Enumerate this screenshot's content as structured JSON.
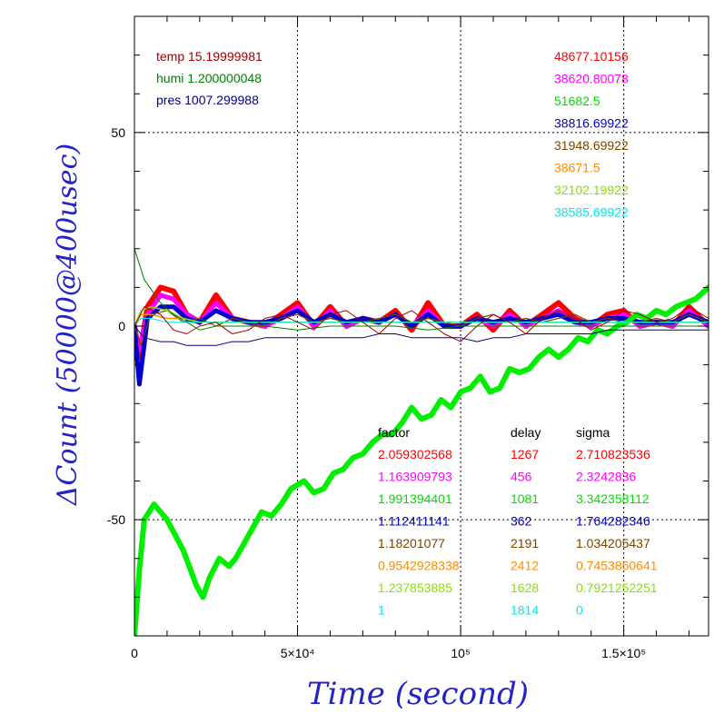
{
  "chart_data": {
    "type": "line",
    "xlabel": "Time (second)",
    "ylabel": "ΔCount (50000@400usec)",
    "xlim": [
      0,
      176000
    ],
    "ylim": [
      -80,
      80
    ],
    "x_ticks": [
      {
        "value": 0,
        "label": "0"
      },
      {
        "value": 50000,
        "label": "5×10⁴"
      },
      {
        "value": 100000,
        "label": "10⁵"
      },
      {
        "value": 150000,
        "label": "1.5×10⁵"
      }
    ],
    "y_ticks": [
      {
        "value": -50,
        "label": "-50"
      },
      {
        "value": 0,
        "label": "0"
      },
      {
        "value": 50,
        "label": "50"
      }
    ],
    "grid": true,
    "env": [
      {
        "text": "temp 15.19999981",
        "color": "#a00000"
      },
      {
        "text": "humi 1.200000048",
        "color": "#008000"
      },
      {
        "text": "pres 1007.299988",
        "color": "#000080"
      }
    ],
    "baselines": [
      "48677.10156",
      "38620.80078",
      "51682.5",
      "38816.69922",
      "31948.69922",
      "38671.5",
      "32102.19922",
      "38585.69922"
    ],
    "fit_headers": {
      "factor": "factor",
      "delay": "delay",
      "sigma": "sigma"
    },
    "fit_rows": [
      {
        "factor": "2.059302568",
        "delay": "1267",
        "sigma": "2.710823536"
      },
      {
        "factor": "1.163909793",
        "delay": "456",
        "sigma": "2.3242836"
      },
      {
        "factor": "1.991394401",
        "delay": "1081",
        "sigma": "3.342358112"
      },
      {
        "factor": "1.112411141",
        "delay": "362",
        "sigma": "1.764282346"
      },
      {
        "factor": "1.18201077",
        "delay": "2191",
        "sigma": "1.034205437"
      },
      {
        "factor": "0.9542928338",
        "delay": "2412",
        "sigma": "0.7453860641"
      },
      {
        "factor": "1.237853885",
        "delay": "1628",
        "sigma": "0.7921252251"
      },
      {
        "factor": "1",
        "delay": "1814",
        "sigma": "0"
      }
    ],
    "series_colors": [
      "#ff0000",
      "#ff00ff",
      "#00dd00",
      "#0000cc",
      "#7a4400",
      "#ff8c00",
      "#88e000",
      "#00e8e8"
    ],
    "series": [
      {
        "color": "#ff0000",
        "kind": "band",
        "x": [
          0,
          1500,
          4000,
          8000,
          12000,
          16000,
          20000,
          25000,
          30000,
          35000,
          40000,
          45000,
          50000,
          55000,
          60000,
          65000,
          70000,
          75000,
          80000,
          85000,
          90000,
          95000,
          100000,
          105000,
          110000,
          115000,
          120000,
          125000,
          130000,
          135000,
          140000,
          145000,
          150000,
          155000,
          160000,
          165000,
          170000,
          176000
        ],
        "y": [
          0,
          -8,
          5,
          10,
          9,
          3,
          1,
          8,
          2,
          1,
          0,
          3,
          6,
          0,
          5,
          0,
          2,
          1,
          4,
          -1,
          6,
          0,
          0,
          3,
          -1,
          4,
          0,
          3,
          6,
          2,
          0,
          3,
          4,
          0,
          1,
          0,
          5,
          0
        ],
        "width": 6
      },
      {
        "color": "#ff00ff",
        "kind": "band",
        "x": [
          0,
          1500,
          4000,
          8000,
          12000,
          16000,
          20000,
          25000,
          30000,
          35000,
          40000,
          45000,
          50000,
          55000,
          60000,
          65000,
          70000,
          75000,
          80000,
          85000,
          90000,
          95000,
          100000,
          105000,
          110000,
          115000,
          120000,
          125000,
          130000,
          135000,
          140000,
          145000,
          150000,
          155000,
          160000,
          165000,
          170000,
          176000
        ],
        "y": [
          0,
          -6,
          3,
          8,
          7,
          3,
          1,
          6,
          2,
          1,
          0,
          2,
          5,
          0,
          4,
          0,
          2,
          1,
          3,
          0,
          4,
          0,
          0,
          2,
          0,
          3,
          0,
          2,
          4,
          1,
          0,
          2,
          3,
          0,
          1,
          0,
          4,
          0
        ],
        "width": 5
      },
      {
        "color": "#0000cc",
        "kind": "band",
        "x": [
          0,
          1500,
          4000,
          8000,
          12000,
          16000,
          20000,
          25000,
          30000,
          35000,
          40000,
          45000,
          50000,
          55000,
          60000,
          65000,
          70000,
          75000,
          80000,
          85000,
          90000,
          95000,
          100000,
          105000,
          110000,
          115000,
          120000,
          125000,
          130000,
          135000,
          140000,
          145000,
          150000,
          155000,
          160000,
          165000,
          170000,
          176000
        ],
        "y": [
          0,
          -15,
          2,
          5,
          5,
          2,
          1,
          4,
          2,
          1,
          1,
          2,
          4,
          1,
          3,
          1,
          2,
          1,
          3,
          0,
          3,
          0,
          0,
          2,
          1,
          2,
          1,
          2,
          3,
          1,
          1,
          2,
          2,
          1,
          1,
          1,
          3,
          1
        ],
        "width": 5
      },
      {
        "color": "#00ee00",
        "kind": "band",
        "x": [
          0,
          1500,
          3000,
          6000,
          10000,
          15000,
          19000,
          21000,
          23000,
          26000,
          29000,
          31000,
          35000,
          39000,
          42000,
          45000,
          48000,
          52000,
          55000,
          58000,
          61000,
          64000,
          67000,
          70000,
          73000,
          76000,
          79000,
          82000,
          85000,
          88000,
          91000,
          94000,
          97000,
          100000,
          103000,
          106000,
          109000,
          112000,
          115000,
          118000,
          121000,
          124000,
          127000,
          130000,
          133000,
          136000,
          139000,
          142000,
          145000,
          148000,
          151000,
          154000,
          157000,
          160000,
          163000,
          166000,
          169000,
          172000,
          176000
        ],
        "y": [
          -80,
          -63,
          -50,
          -46,
          -50,
          -58,
          -67,
          -70,
          -65,
          -60,
          -62,
          -60,
          -54,
          -48,
          -49,
          -46,
          -42,
          -40,
          -43,
          -42,
          -38,
          -37,
          -34,
          -33,
          -30,
          -28,
          -28,
          -25,
          -21,
          -24,
          -23,
          -19,
          -21,
          -17,
          -16,
          -13,
          -17,
          -16,
          -11,
          -12,
          -11,
          -8,
          -6,
          -8,
          -6,
          -3,
          -4,
          -1,
          -2,
          0,
          1,
          3,
          2,
          4,
          3,
          5,
          6,
          7,
          10
        ],
        "width": 6
      },
      {
        "color": "#7a4400",
        "kind": "line",
        "x": [
          0,
          2000,
          5000,
          10000,
          15000,
          20000,
          25000,
          30000,
          35000,
          40000,
          45000,
          50000,
          55000,
          60000,
          65000,
          70000,
          75000,
          80000,
          85000,
          90000,
          95000,
          100000,
          105000,
          110000,
          115000,
          120000,
          125000,
          130000,
          135000,
          140000,
          145000,
          150000,
          155000,
          160000,
          165000,
          170000,
          176000
        ],
        "y": [
          0,
          -5,
          3,
          4,
          1,
          2,
          0,
          2,
          1,
          0,
          2,
          3,
          1,
          2,
          1,
          1,
          2,
          3,
          1,
          2,
          1,
          0,
          2,
          3,
          1,
          2,
          1,
          2,
          3,
          1,
          2,
          1,
          1,
          2,
          1,
          3,
          1
        ],
        "width": 1.2
      },
      {
        "color": "#ff8c00",
        "kind": "line",
        "x": [
          0,
          2000,
          5000,
          10000,
          15000,
          20000,
          25000,
          30000,
          35000,
          40000,
          45000,
          50000,
          55000,
          60000,
          65000,
          70000,
          75000,
          80000,
          85000,
          90000,
          95000,
          100000,
          105000,
          110000,
          115000,
          120000,
          125000,
          130000,
          135000,
          140000,
          145000,
          150000,
          155000,
          160000,
          165000,
          170000,
          176000
        ],
        "y": [
          0,
          3,
          3,
          2,
          2,
          1,
          1,
          1,
          1,
          1,
          1,
          1,
          1,
          1,
          1,
          1,
          1,
          1,
          1,
          1,
          1,
          1,
          1,
          1,
          1,
          1,
          1,
          1,
          1,
          1,
          1,
          1,
          1,
          1,
          1,
          1,
          1
        ],
        "width": 1.5
      },
      {
        "color": "#88e000",
        "kind": "line",
        "x": [
          0,
          2000,
          5000,
          10000,
          15000,
          20000,
          25000,
          30000,
          35000,
          40000,
          50000,
          60000,
          70000,
          80000,
          90000,
          100000,
          110000,
          120000,
          130000,
          140000,
          150000,
          160000,
          170000,
          176000
        ],
        "y": [
          0,
          4,
          5,
          4,
          2,
          1,
          1,
          1,
          1,
          1,
          1,
          1,
          1,
          1,
          1,
          1,
          1,
          1,
          1,
          1,
          1,
          1,
          1,
          1
        ],
        "width": 1.5
      },
      {
        "color": "#00e8e8",
        "kind": "line",
        "x": [
          0,
          2000,
          5000,
          10000,
          20000,
          30000,
          40000,
          60000,
          80000,
          100000,
          120000,
          140000,
          160000,
          176000
        ],
        "y": [
          0,
          2,
          2,
          1,
          1,
          1,
          1,
          1,
          1,
          1,
          1,
          1,
          1,
          1
        ],
        "width": 1
      },
      {
        "color": "#a00000",
        "kind": "line",
        "x": [
          0,
          3000,
          8000,
          12000,
          16000,
          20000,
          25000,
          30000,
          35000,
          40000,
          45000,
          50000,
          55000,
          60000,
          65000,
          70000,
          75000,
          80000,
          85000,
          90000,
          95000,
          100000,
          105000,
          110000,
          115000,
          120000,
          125000,
          130000,
          135000,
          140000,
          145000,
          150000,
          155000,
          160000,
          165000,
          170000,
          176000
        ],
        "y": [
          0,
          5,
          3,
          -1,
          -2,
          0,
          1,
          -2,
          -1,
          2,
          3,
          1,
          -1,
          3,
          4,
          1,
          -2,
          2,
          4,
          1,
          -2,
          -4,
          0,
          3,
          1,
          -2,
          2,
          4,
          2,
          -1,
          1,
          4,
          3,
          1,
          2,
          5,
          2
        ],
        "width": 1
      },
      {
        "color": "#008000",
        "kind": "line",
        "x": [
          0,
          3000,
          8000,
          12000,
          16000,
          20000,
          25000,
          30000,
          40000,
          50000,
          60000,
          70000,
          80000,
          90000,
          100000,
          110000,
          120000,
          130000,
          140000,
          150000,
          160000,
          170000,
          176000
        ],
        "y": [
          20,
          12,
          6,
          3,
          1,
          -1,
          0,
          0,
          0,
          -1,
          0,
          0,
          0,
          -1,
          0,
          0,
          0,
          0,
          0,
          0,
          0,
          0,
          0
        ],
        "width": 1
      },
      {
        "color": "#000080",
        "kind": "line",
        "x": [
          0,
          3000,
          8000,
          12000,
          16000,
          20000,
          25000,
          30000,
          35000,
          40000,
          45000,
          50000,
          55000,
          60000,
          65000,
          70000,
          75000,
          80000,
          85000,
          90000,
          95000,
          100000,
          105000,
          110000,
          115000,
          120000,
          125000,
          130000,
          135000,
          140000,
          145000,
          150000,
          155000,
          160000,
          165000,
          170000,
          176000
        ],
        "y": [
          0,
          -3,
          -4,
          -4,
          -5,
          -5,
          -5,
          -4,
          -4,
          -3,
          -3,
          -3,
          -3,
          -3,
          -3,
          -3,
          -2,
          -2,
          -3,
          -3,
          -3,
          -3,
          -4,
          -3,
          -3,
          -2,
          -2,
          -2,
          -2,
          -2,
          -1,
          -1,
          -1,
          -1,
          -1,
          -1,
          -1
        ],
        "width": 1
      }
    ]
  }
}
